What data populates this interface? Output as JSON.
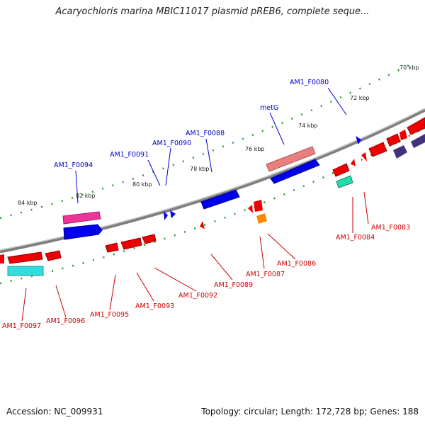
{
  "title": "Acaryochloris marina MBIC11017 plasmid pREB6, complete seque...",
  "footer": {
    "accession": "Accession: NC_009931",
    "topology": "Topology: circular; Length: 172,728 bp; Genes: 188"
  },
  "colors": {
    "backbone": "#8a8a8a",
    "forward_label": "#0000cc",
    "reverse_label": "#cc0000",
    "tick_dots": "#2a9a2a"
  },
  "ticks": [
    {
      "label": "70 kbp"
    },
    {
      "label": "72 kbp"
    },
    {
      "label": "74 kbp"
    },
    {
      "label": "76 kbp"
    },
    {
      "label": "78 kbp"
    },
    {
      "label": "80 kbp"
    },
    {
      "label": "82 kbp"
    },
    {
      "label": "84 kbp"
    }
  ],
  "forward_genes": [
    {
      "name": "AM1_F0080"
    },
    {
      "name": "metG"
    },
    {
      "name": "AM1_F0088"
    },
    {
      "name": "AM1_F0090"
    },
    {
      "name": "AM1_F0091"
    },
    {
      "name": "AM1_F0094"
    }
  ],
  "reverse_genes": [
    {
      "name": "AM1_F0083"
    },
    {
      "name": "AM1_F0084"
    },
    {
      "name": "AM1_F0086"
    },
    {
      "name": "AM1_F0087"
    },
    {
      "name": "AM1_F0089"
    },
    {
      "name": "AM1_F0092"
    },
    {
      "name": "AM1_F0093"
    },
    {
      "name": "AM1_F0095"
    },
    {
      "name": "AM1_F0096"
    },
    {
      "name": "AM1_F0097"
    }
  ]
}
